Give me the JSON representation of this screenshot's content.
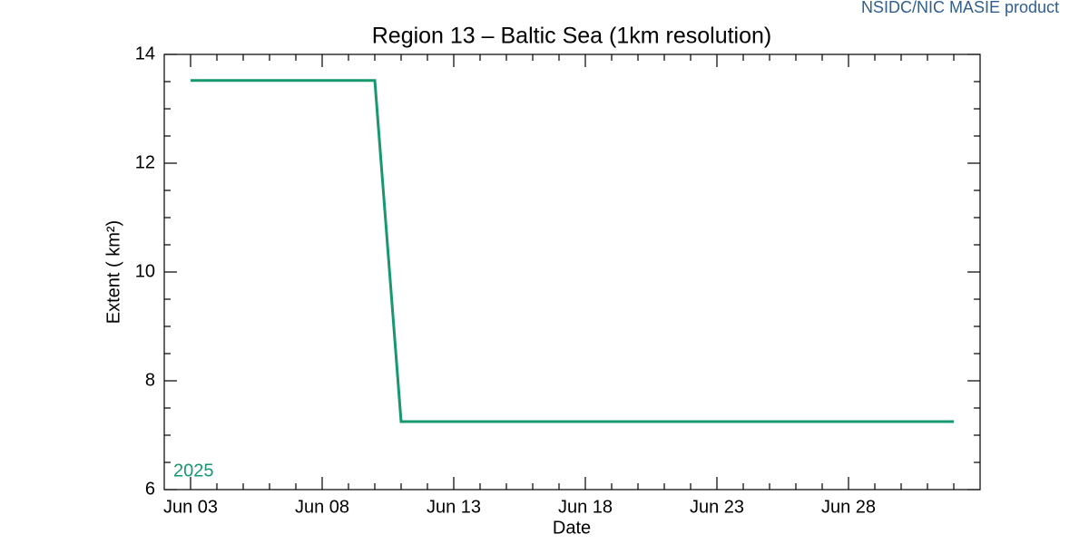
{
  "chart_data": {
    "type": "line",
    "title": "Region 13 – Baltic Sea (1km resolution)",
    "credit": "NSIDC/NIC MASIE product",
    "x_label": "Date",
    "y_label": "Extent ( km²)",
    "x": [
      "Jun 03",
      "Jun 04",
      "Jun 05",
      "Jun 06",
      "Jun 07",
      "Jun 08",
      "Jun 09",
      "Jun 10",
      "Jun 11",
      "Jun 12",
      "Jun 13",
      "Jun 14",
      "Jun 15",
      "Jun 16",
      "Jun 17",
      "Jun 18",
      "Jun 19",
      "Jun 20",
      "Jun 21",
      "Jun 22",
      "Jun 23",
      "Jun 24",
      "Jun 25",
      "Jun 26",
      "Jun 27",
      "Jun 28",
      "Jun 29",
      "Jun 30",
      "Jul 01",
      "Jul 02"
    ],
    "series": [
      {
        "name": "2025",
        "color": "#17986e",
        "values": [
          13.52,
          13.52,
          13.52,
          13.52,
          13.52,
          13.52,
          13.52,
          13.52,
          7.25,
          7.25,
          7.25,
          7.25,
          7.25,
          7.25,
          7.25,
          7.25,
          7.25,
          7.25,
          7.25,
          7.25,
          7.25,
          7.25,
          7.25,
          7.25,
          7.25,
          7.25,
          7.25,
          7.25,
          7.25,
          7.25
        ]
      }
    ],
    "xlim": [
      "Jun 02",
      "Jul 03"
    ],
    "xticks": [
      "Jun 03",
      "Jun 08",
      "Jun 13",
      "Jun 18",
      "Jun 23",
      "Jun 28"
    ],
    "ylim": [
      6,
      14
    ],
    "yticks": [
      6,
      8,
      10,
      12,
      14
    ],
    "grid": false,
    "legend": "bottom-left"
  }
}
